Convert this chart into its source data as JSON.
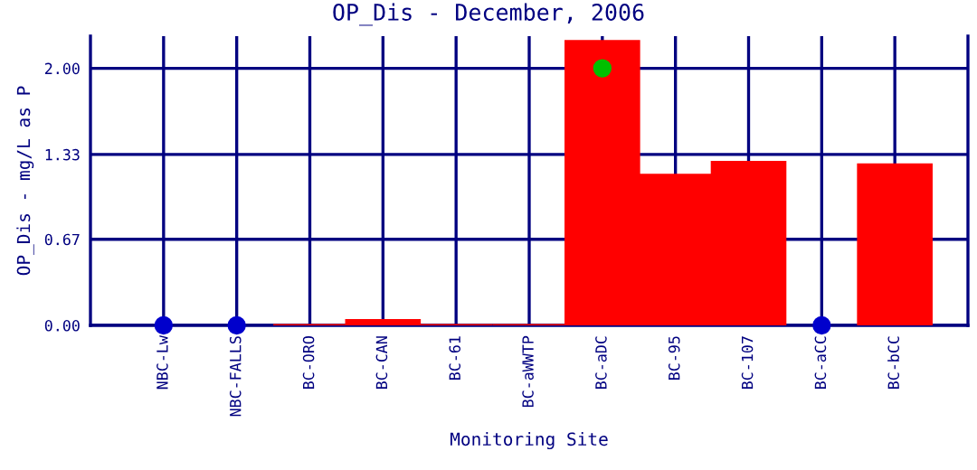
{
  "chart_data": {
    "type": "bar",
    "title": "OP_Dis - December, 2006",
    "xlabel": "Monitoring Site",
    "ylabel": "OP_Dis - mg/L as P",
    "categories": [
      "NBC-Lw",
      "NBC-FALLS",
      "BC-ORO",
      "BC-CAN",
      "BC-61",
      "BC-aWWTP",
      "BC-aDC",
      "BC-95",
      "BC-107",
      "BC-aCC",
      "BC-bCC"
    ],
    "series": [
      {
        "color": "#ff0000",
        "values": [
          null,
          null,
          0,
          0.04,
          0,
          0,
          2.21,
          1.17,
          1.27,
          null,
          1.25
        ]
      },
      {
        "type": "scatter",
        "color": "#0000cc",
        "values": [
          0,
          0,
          null,
          null,
          null,
          null,
          null,
          null,
          null,
          0,
          null
        ]
      },
      {
        "type": "scatter",
        "color": "#00c000",
        "values": [
          null,
          null,
          null,
          null,
          null,
          null,
          2.0,
          null,
          null,
          null,
          null
        ]
      }
    ],
    "ylim": [
      0,
      2.25
    ],
    "yticks": [
      {
        "value": 0,
        "label": "0.00"
      },
      {
        "value": 0.67,
        "label": "0.67"
      },
      {
        "value": 1.33,
        "label": "1.33"
      },
      {
        "value": 2,
        "label": "2.00"
      }
    ],
    "grid": true,
    "marker": "circle",
    "legend": false
  }
}
